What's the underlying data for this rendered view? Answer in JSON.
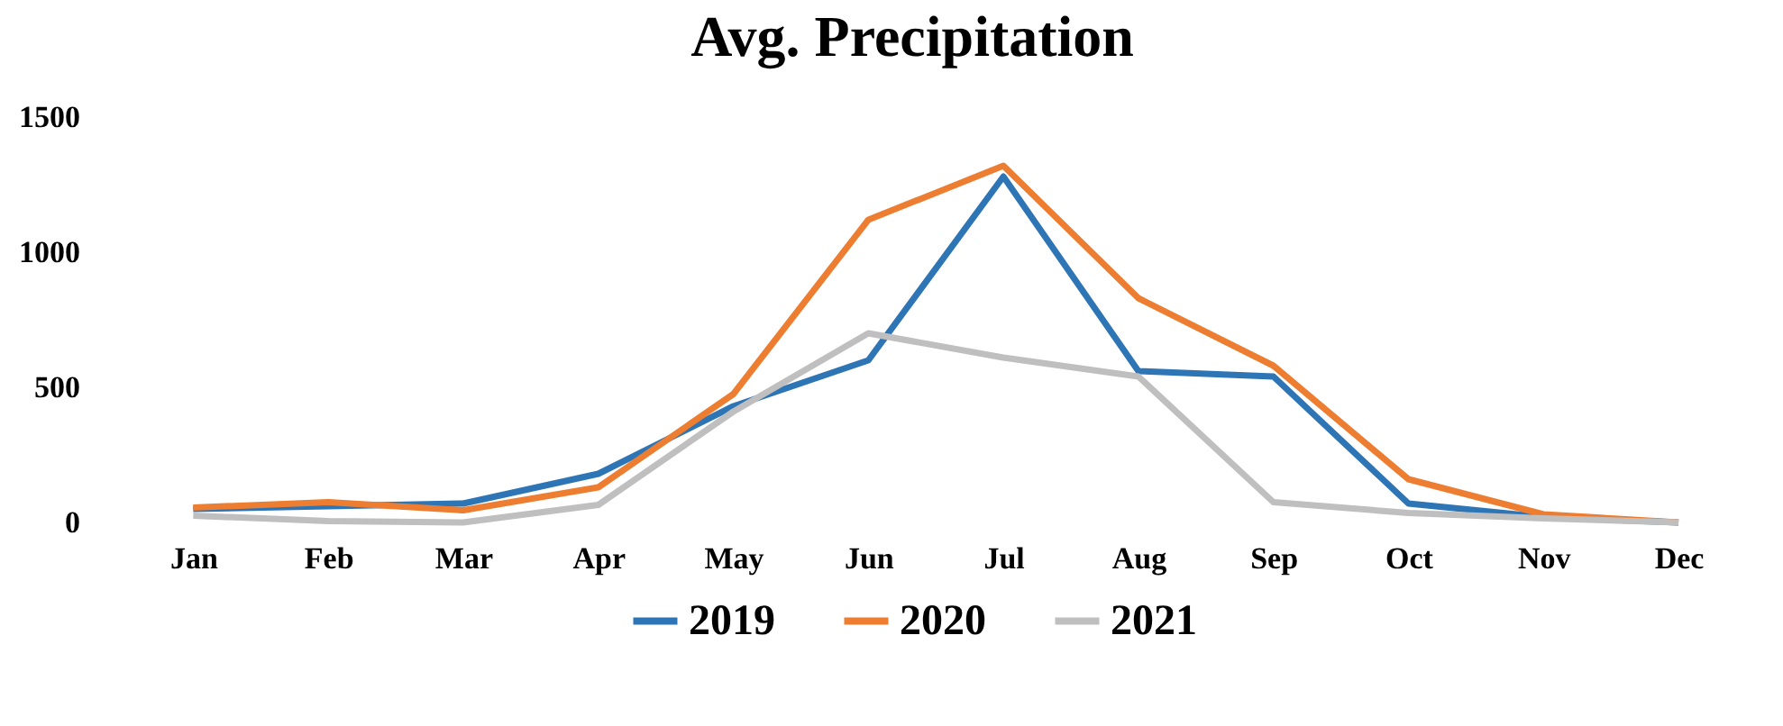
{
  "chart_data": {
    "type": "line",
    "title": "Avg. Precipitation",
    "categories": [
      "Jan",
      "Feb",
      "Mar",
      "Apr",
      "May",
      "Jun",
      "Jul",
      "Aug",
      "Sep",
      "Oct",
      "Nov",
      "Dec"
    ],
    "series": [
      {
        "name": "2019",
        "color": "#2e75b6",
        "values": [
          50,
          60,
          70,
          180,
          430,
          600,
          1280,
          560,
          540,
          70,
          20,
          0
        ]
      },
      {
        "name": "2020",
        "color": "#ed7d31",
        "values": [
          55,
          75,
          45,
          130,
          475,
          1120,
          1320,
          830,
          580,
          160,
          30,
          0
        ]
      },
      {
        "name": "2021",
        "color": "#bfbfbf",
        "values": [
          25,
          5,
          0,
          65,
          410,
          700,
          610,
          540,
          75,
          35,
          15,
          0
        ]
      }
    ],
    "ylim": [
      0,
      1500
    ],
    "yticks": [
      0,
      500,
      1000,
      1500
    ],
    "grid": false,
    "legend": "bottom"
  }
}
